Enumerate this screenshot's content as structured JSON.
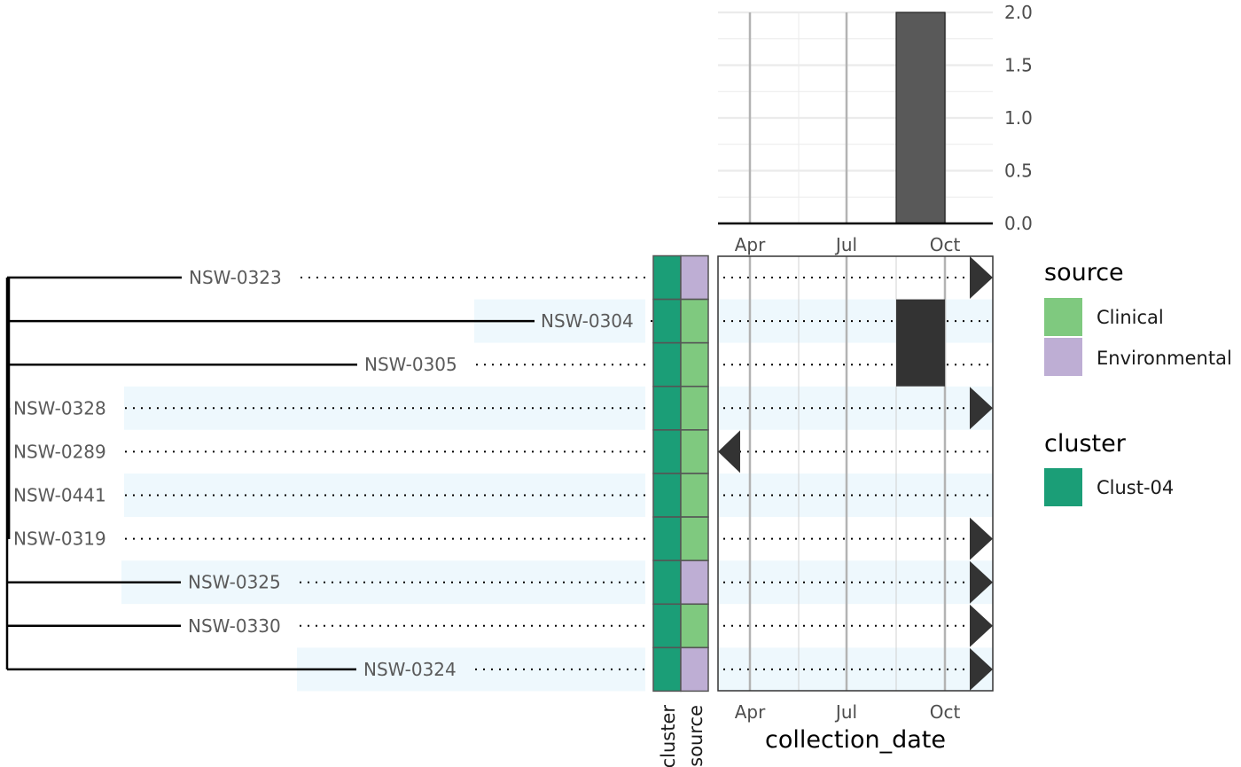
{
  "chart_data": [
    {
      "type": "bar",
      "title": "",
      "xlabel": "",
      "ylabel": "",
      "x_ticks": [
        "Apr",
        "Jul",
        "Oct"
      ],
      "y_ticks": [
        "0.0",
        "0.5",
        "1.0",
        "1.5",
        "2.0"
      ],
      "ylim": [
        0,
        2
      ],
      "categories": [
        "Sep"
      ],
      "values": [
        2
      ],
      "bar_color": "#595959"
    },
    {
      "type": "tree",
      "tips": [
        {
          "label": "NSW-0323",
          "cluster": "Clust-04",
          "source": "Environmental",
          "shaded": false,
          "date_marker": "right",
          "date_bar": false
        },
        {
          "label": "NSW-0304",
          "cluster": "Clust-04",
          "source": "Clinical",
          "shaded": true,
          "date_marker": "none",
          "date_bar": true
        },
        {
          "label": "NSW-0305",
          "cluster": "Clust-04",
          "source": "Clinical",
          "shaded": false,
          "date_marker": "none",
          "date_bar": true
        },
        {
          "label": "NSW-0328",
          "cluster": "Clust-04",
          "source": "Clinical",
          "shaded": true,
          "date_marker": "right",
          "date_bar": false
        },
        {
          "label": "NSW-0289",
          "cluster": "Clust-04",
          "source": "Clinical",
          "shaded": false,
          "date_marker": "left",
          "date_bar": false
        },
        {
          "label": "NSW-0441",
          "cluster": "Clust-04",
          "source": "Clinical",
          "shaded": true,
          "date_marker": "none",
          "date_bar": false
        },
        {
          "label": "NSW-0319",
          "cluster": "Clust-04",
          "source": "Clinical",
          "shaded": false,
          "date_marker": "right",
          "date_bar": false
        },
        {
          "label": "NSW-0325",
          "cluster": "Clust-04",
          "source": "Environmental",
          "shaded": true,
          "date_marker": "right",
          "date_bar": false
        },
        {
          "label": "NSW-0330",
          "cluster": "Clust-04",
          "source": "Clinical",
          "shaded": false,
          "date_marker": "right",
          "date_bar": false
        },
        {
          "label": "NSW-0324",
          "cluster": "Clust-04",
          "source": "Environmental",
          "shaded": true,
          "date_marker": "right",
          "date_bar": false
        }
      ],
      "heatmap_columns": [
        "cluster",
        "source"
      ],
      "timeline_x_ticks": [
        "Apr",
        "Jul",
        "Oct"
      ],
      "timeline_xlabel": "collection_date"
    }
  ],
  "legends": [
    {
      "title": "source",
      "items": [
        {
          "label": "Clinical",
          "color": "#7fc97f"
        },
        {
          "label": "Environmental",
          "color": "#beaed4"
        }
      ]
    },
    {
      "title": "cluster",
      "items": [
        {
          "label": "Clust-04",
          "color": "#1b9e77"
        }
      ]
    }
  ],
  "colors": {
    "shade": "#eef8fd",
    "marker": "#333333",
    "axis": "#000000",
    "grid_major": "#b3b3b3",
    "grid_minor": "#ebebeb"
  }
}
